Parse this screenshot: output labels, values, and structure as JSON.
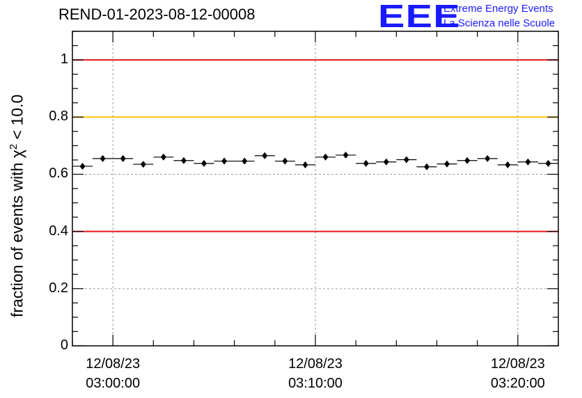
{
  "title": "REND-01-2023-08-12-00008",
  "logo": {
    "mark": "EEE",
    "line1": "Extreme Energy Events",
    "line2": "La Scienza nelle Scuole",
    "color": "#1a1aff"
  },
  "chart_data": {
    "type": "scatter",
    "ylabel_prefix": "fraction of events with ",
    "ylabel_symbol": "χ",
    "ylabel_sup": "2",
    "ylabel_suffix": " < 10.0",
    "ylim": [
      0,
      1.1
    ],
    "yticks": [
      {
        "value": 0,
        "label": "0"
      },
      {
        "value": 0.2,
        "label": "0.2"
      },
      {
        "value": 0.4,
        "label": "0.4"
      },
      {
        "value": 0.6,
        "label": "0.6"
      },
      {
        "value": 0.8,
        "label": "0.8"
      },
      {
        "value": 1,
        "label": "1"
      }
    ],
    "xlim": [
      "02:58:00",
      "03:22:00"
    ],
    "xticks": [
      {
        "time": "03:00:00",
        "line1": "12/08/23",
        "line2": "03:00:00"
      },
      {
        "time": "03:10:00",
        "line1": "12/08/23",
        "line2": "03:10:00"
      },
      {
        "time": "03:20:00",
        "line1": "12/08/23",
        "line2": "03:20:00"
      }
    ],
    "grid": true,
    "reference_lines": [
      {
        "value": 1.0,
        "color": "#e8141c"
      },
      {
        "value": 0.8,
        "color": "#ffc000"
      },
      {
        "value": 0.4,
        "color": "#e8141c"
      }
    ],
    "series": [
      {
        "color": "#000000",
        "points": [
          {
            "t": "02:58:30",
            "y": 0.628
          },
          {
            "t": "02:59:30",
            "y": 0.655
          },
          {
            "t": "03:00:30",
            "y": 0.655
          },
          {
            "t": "03:01:30",
            "y": 0.635
          },
          {
            "t": "03:02:30",
            "y": 0.66
          },
          {
            "t": "03:03:30",
            "y": 0.648
          },
          {
            "t": "03:04:30",
            "y": 0.638
          },
          {
            "t": "03:05:30",
            "y": 0.646
          },
          {
            "t": "03:06:30",
            "y": 0.646
          },
          {
            "t": "03:07:30",
            "y": 0.665
          },
          {
            "t": "03:08:30",
            "y": 0.646
          },
          {
            "t": "03:09:30",
            "y": 0.633
          },
          {
            "t": "03:10:30",
            "y": 0.66
          },
          {
            "t": "03:11:30",
            "y": 0.667
          },
          {
            "t": "03:12:30",
            "y": 0.638
          },
          {
            "t": "03:13:30",
            "y": 0.643
          },
          {
            "t": "03:14:30",
            "y": 0.651
          },
          {
            "t": "03:15:30",
            "y": 0.626
          },
          {
            "t": "03:16:30",
            "y": 0.636
          },
          {
            "t": "03:17:30",
            "y": 0.648
          },
          {
            "t": "03:18:30",
            "y": 0.655
          },
          {
            "t": "03:19:30",
            "y": 0.633
          },
          {
            "t": "03:20:30",
            "y": 0.643
          },
          {
            "t": "03:21:30",
            "y": 0.638
          }
        ],
        "y_error": 0.01
      }
    ]
  }
}
